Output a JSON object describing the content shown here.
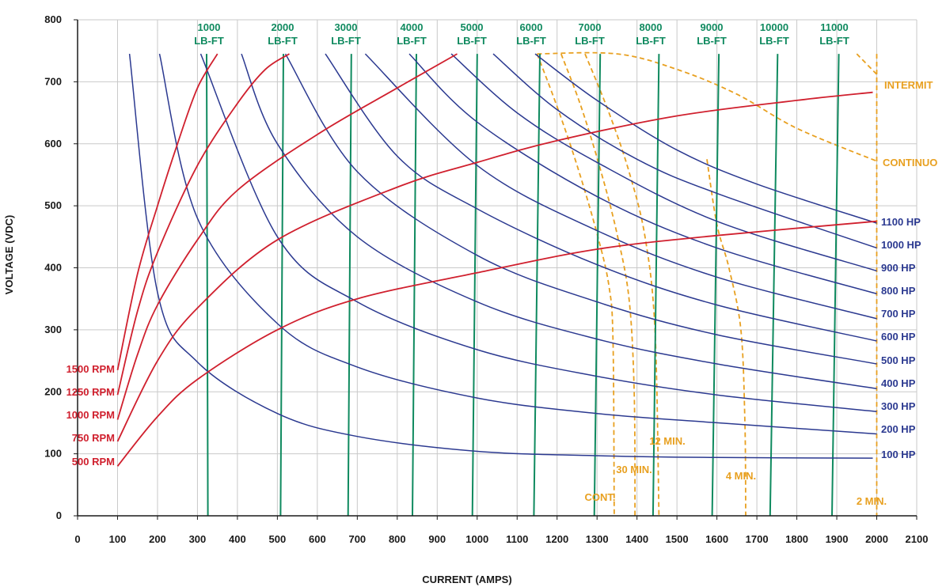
{
  "chart_data": {
    "type": "line",
    "xlabel": "CURRENT (AMPS)",
    "ylabel": "VOLTAGE (VDC)",
    "xlim": [
      0,
      2100
    ],
    "ylim": [
      0,
      800
    ],
    "xticks": [
      0,
      100,
      200,
      300,
      400,
      500,
      600,
      700,
      800,
      900,
      1000,
      1100,
      1200,
      1300,
      1400,
      1500,
      1600,
      1700,
      1800,
      1900,
      2000,
      2100
    ],
    "yticks": [
      0,
      100,
      200,
      300,
      400,
      500,
      600,
      700,
      800
    ],
    "grid": true,
    "colors": {
      "power": "#2b3990",
      "speed": "#d0202e",
      "torque": "#0f8a5f",
      "duty": "#e8a020",
      "axis": "#1a1a1a"
    },
    "power_series": [
      {
        "label": "100 HP",
        "hp": 100,
        "points": [
          [
            130,
            745
          ],
          [
            200,
            360
          ],
          [
            300,
            248
          ],
          [
            500,
            165
          ],
          [
            700,
            128
          ],
          [
            1000,
            104
          ],
          [
            1300,
            97
          ],
          [
            1600,
            94
          ],
          [
            1990,
            93
          ]
        ]
      },
      {
        "label": "200 HP",
        "hp": 200,
        "points": [
          [
            205,
            745
          ],
          [
            300,
            480
          ],
          [
            500,
            310
          ],
          [
            700,
            240
          ],
          [
            1000,
            190
          ],
          [
            1300,
            165
          ],
          [
            1600,
            150
          ],
          [
            2000,
            132
          ]
        ]
      },
      {
        "label": "300 HP",
        "hp": 300,
        "points": [
          [
            308,
            745
          ],
          [
            500,
            450
          ],
          [
            700,
            345
          ],
          [
            1000,
            268
          ],
          [
            1300,
            225
          ],
          [
            1600,
            195
          ],
          [
            2000,
            168
          ]
        ]
      },
      {
        "label": "400 HP",
        "hp": 400,
        "points": [
          [
            410,
            745
          ],
          [
            500,
            600
          ],
          [
            700,
            450
          ],
          [
            1000,
            345
          ],
          [
            1300,
            285
          ],
          [
            1600,
            245
          ],
          [
            2000,
            205
          ]
        ]
      },
      {
        "label": "500 HP",
        "hp": 500,
        "points": [
          [
            520,
            745
          ],
          [
            700,
            555
          ],
          [
            1000,
            420
          ],
          [
            1300,
            345
          ],
          [
            1600,
            292
          ],
          [
            2000,
            245
          ]
        ]
      },
      {
        "label": "600 HP",
        "hp": 600,
        "points": [
          [
            620,
            745
          ],
          [
            800,
            580
          ],
          [
            1000,
            495
          ],
          [
            1300,
            405
          ],
          [
            1600,
            340
          ],
          [
            2000,
            282
          ]
        ]
      },
      {
        "label": "700 HP",
        "hp": 700,
        "points": [
          [
            720,
            745
          ],
          [
            1000,
            565
          ],
          [
            1300,
            460
          ],
          [
            1600,
            385
          ],
          [
            2000,
            318
          ]
        ]
      },
      {
        "label": "800 HP",
        "hp": 800,
        "points": [
          [
            830,
            745
          ],
          [
            1000,
            635
          ],
          [
            1300,
            515
          ],
          [
            1600,
            432
          ],
          [
            2000,
            358
          ]
        ]
      },
      {
        "label": "900 HP",
        "hp": 900,
        "points": [
          [
            935,
            745
          ],
          [
            1100,
            650
          ],
          [
            1300,
            570
          ],
          [
            1600,
            475
          ],
          [
            2000,
            395
          ]
        ]
      },
      {
        "label": "1000 HP",
        "hp": 1000,
        "points": [
          [
            1040,
            745
          ],
          [
            1200,
            655
          ],
          [
            1400,
            575
          ],
          [
            1600,
            520
          ],
          [
            2000,
            432
          ]
        ]
      },
      {
        "label": "1100 HP",
        "hp": 1100,
        "points": [
          [
            1145,
            745
          ],
          [
            1300,
            670
          ],
          [
            1500,
            590
          ],
          [
            1700,
            535
          ],
          [
            2000,
            472
          ]
        ]
      }
    ],
    "speed_series": [
      {
        "label": "1500 RPM",
        "rpm": 1500,
        "points": [
          [
            100,
            235
          ],
          [
            150,
            390
          ],
          [
            200,
            500
          ],
          [
            250,
            600
          ],
          [
            300,
            690
          ],
          [
            350,
            745
          ]
        ]
      },
      {
        "label": "1250 RPM",
        "rpm": 1250,
        "points": [
          [
            100,
            195
          ],
          [
            150,
            330
          ],
          [
            200,
            425
          ],
          [
            300,
            565
          ],
          [
            400,
            665
          ],
          [
            470,
            720
          ],
          [
            530,
            745
          ]
        ]
      },
      {
        "label": "1000 RPM",
        "rpm": 1000,
        "points": [
          [
            100,
            155
          ],
          [
            150,
            260
          ],
          [
            200,
            340
          ],
          [
            300,
            445
          ],
          [
            400,
            525
          ],
          [
            600,
            615
          ],
          [
            800,
            690
          ],
          [
            950,
            745
          ]
        ]
      },
      {
        "label": "750 RPM",
        "rpm": 750,
        "points": [
          [
            100,
            120
          ],
          [
            200,
            250
          ],
          [
            300,
            335
          ],
          [
            500,
            445
          ],
          [
            800,
            530
          ],
          [
            1000,
            570
          ],
          [
            1200,
            605
          ],
          [
            1500,
            645
          ],
          [
            1800,
            670
          ],
          [
            1990,
            683
          ]
        ]
      },
      {
        "label": "500 RPM",
        "rpm": 500,
        "points": [
          [
            100,
            80
          ],
          [
            200,
            160
          ],
          [
            300,
            220
          ],
          [
            500,
            300
          ],
          [
            700,
            350
          ],
          [
            1000,
            392
          ],
          [
            1300,
            430
          ],
          [
            1600,
            452
          ],
          [
            2000,
            475
          ]
        ]
      }
    ],
    "torque_series": [
      {
        "label": "1000 LB-FT",
        "points": [
          [
            323,
            745
          ],
          [
            326,
            0
          ]
        ]
      },
      {
        "label": "2000 LB-FT",
        "points": [
          [
            515,
            745
          ],
          [
            508,
            0
          ]
        ]
      },
      {
        "label": "3000 LB-FT",
        "points": [
          [
            685,
            745
          ],
          [
            677,
            0
          ]
        ]
      },
      {
        "label": "4000 LB-FT",
        "points": [
          [
            848,
            745
          ],
          [
            838,
            0
          ]
        ]
      },
      {
        "label": "5000 LB-FT",
        "points": [
          [
            1000,
            745
          ],
          [
            988,
            0
          ]
        ]
      },
      {
        "label": "6000 LB-FT",
        "points": [
          [
            1157,
            745
          ],
          [
            1142,
            0
          ]
        ]
      },
      {
        "label": "7000 LB-FT",
        "points": [
          [
            1308,
            745
          ],
          [
            1293,
            0
          ]
        ]
      },
      {
        "label": "8000 LB-FT",
        "points": [
          [
            1455,
            745
          ],
          [
            1440,
            0
          ]
        ]
      },
      {
        "label": "9000 LB-FT",
        "points": [
          [
            1605,
            745
          ],
          [
            1588,
            0
          ]
        ]
      },
      {
        "label": "10000 LB-FT",
        "points": [
          [
            1752,
            745
          ],
          [
            1733,
            0
          ]
        ]
      },
      {
        "label": "11000 LB-FT",
        "points": [
          [
            1905,
            745
          ],
          [
            1888,
            0
          ]
        ]
      }
    ],
    "duty_limits": [
      {
        "label": "INTERMITTENT",
        "shown": "INTERMIT",
        "points": [
          [
            1950,
            745
          ],
          [
            2000,
            712
          ]
        ]
      },
      {
        "label": "CONTINUOUS",
        "shown": "CONTINUO",
        "points": [
          [
            1150,
            745
          ],
          [
            1350,
            745
          ],
          [
            1500,
            720
          ],
          [
            1650,
            680
          ],
          [
            1800,
            625
          ],
          [
            2000,
            572
          ]
        ]
      },
      {
        "label": "CONT.",
        "points": [
          [
            1150,
            745
          ],
          [
            1200,
            660
          ],
          [
            1250,
            565
          ],
          [
            1300,
            455
          ],
          [
            1330,
            370
          ],
          [
            1340,
            280
          ],
          [
            1343,
            0
          ]
        ]
      },
      {
        "label": "30 MIN.",
        "points": [
          [
            1210,
            745
          ],
          [
            1260,
            660
          ],
          [
            1310,
            555
          ],
          [
            1350,
            455
          ],
          [
            1380,
            350
          ],
          [
            1393,
            200
          ],
          [
            1395,
            0
          ]
        ]
      },
      {
        "label": "12 MIN.",
        "points": [
          [
            1270,
            745
          ],
          [
            1330,
            650
          ],
          [
            1380,
            555
          ],
          [
            1420,
            450
          ],
          [
            1445,
            300
          ],
          [
            1455,
            0
          ]
        ]
      },
      {
        "label": "4 MIN.",
        "points": [
          [
            1575,
            575
          ],
          [
            1600,
            470
          ],
          [
            1630,
            400
          ],
          [
            1660,
            300
          ],
          [
            1670,
            150
          ],
          [
            1672,
            0
          ]
        ]
      },
      {
        "label": "2 MIN.",
        "points": [
          [
            2000,
            745
          ],
          [
            2000,
            0
          ]
        ]
      }
    ],
    "labels": {
      "hp": [
        "1100 HP",
        "1000 HP",
        "900 HP",
        "800 HP",
        "700 HP",
        "600 HP",
        "500 HP",
        "400 HP",
        "300 HP",
        "200 HP",
        "100 HP"
      ],
      "rpm": [
        "1500 RPM",
        "1250 RPM",
        "1000 RPM",
        "750 RPM",
        "500 RPM"
      ],
      "torque": [
        {
          "value": "1000",
          "unit": "LB-FT"
        },
        {
          "value": "2000",
          "unit": "LB-FT"
        },
        {
          "value": "3000",
          "unit": "LB-FT"
        },
        {
          "value": "4000",
          "unit": "LB-FT"
        },
        {
          "value": "5000",
          "unit": "LB-FT"
        },
        {
          "value": "6000",
          "unit": "LB-FT"
        },
        {
          "value": "7000",
          "unit": "LB-FT"
        },
        {
          "value": "8000",
          "unit": "LB-FT"
        },
        {
          "value": "9000",
          "unit": "LB-FT"
        },
        {
          "value": "10000",
          "unit": "LB-FT"
        },
        {
          "value": "11000",
          "unit": "LB-FT"
        }
      ],
      "duty": [
        "INTERMIT",
        "CONTINUO",
        "CONT.",
        "30 MIN.",
        "12 MIN.",
        "4 MIN.",
        "2 MIN."
      ]
    }
  }
}
